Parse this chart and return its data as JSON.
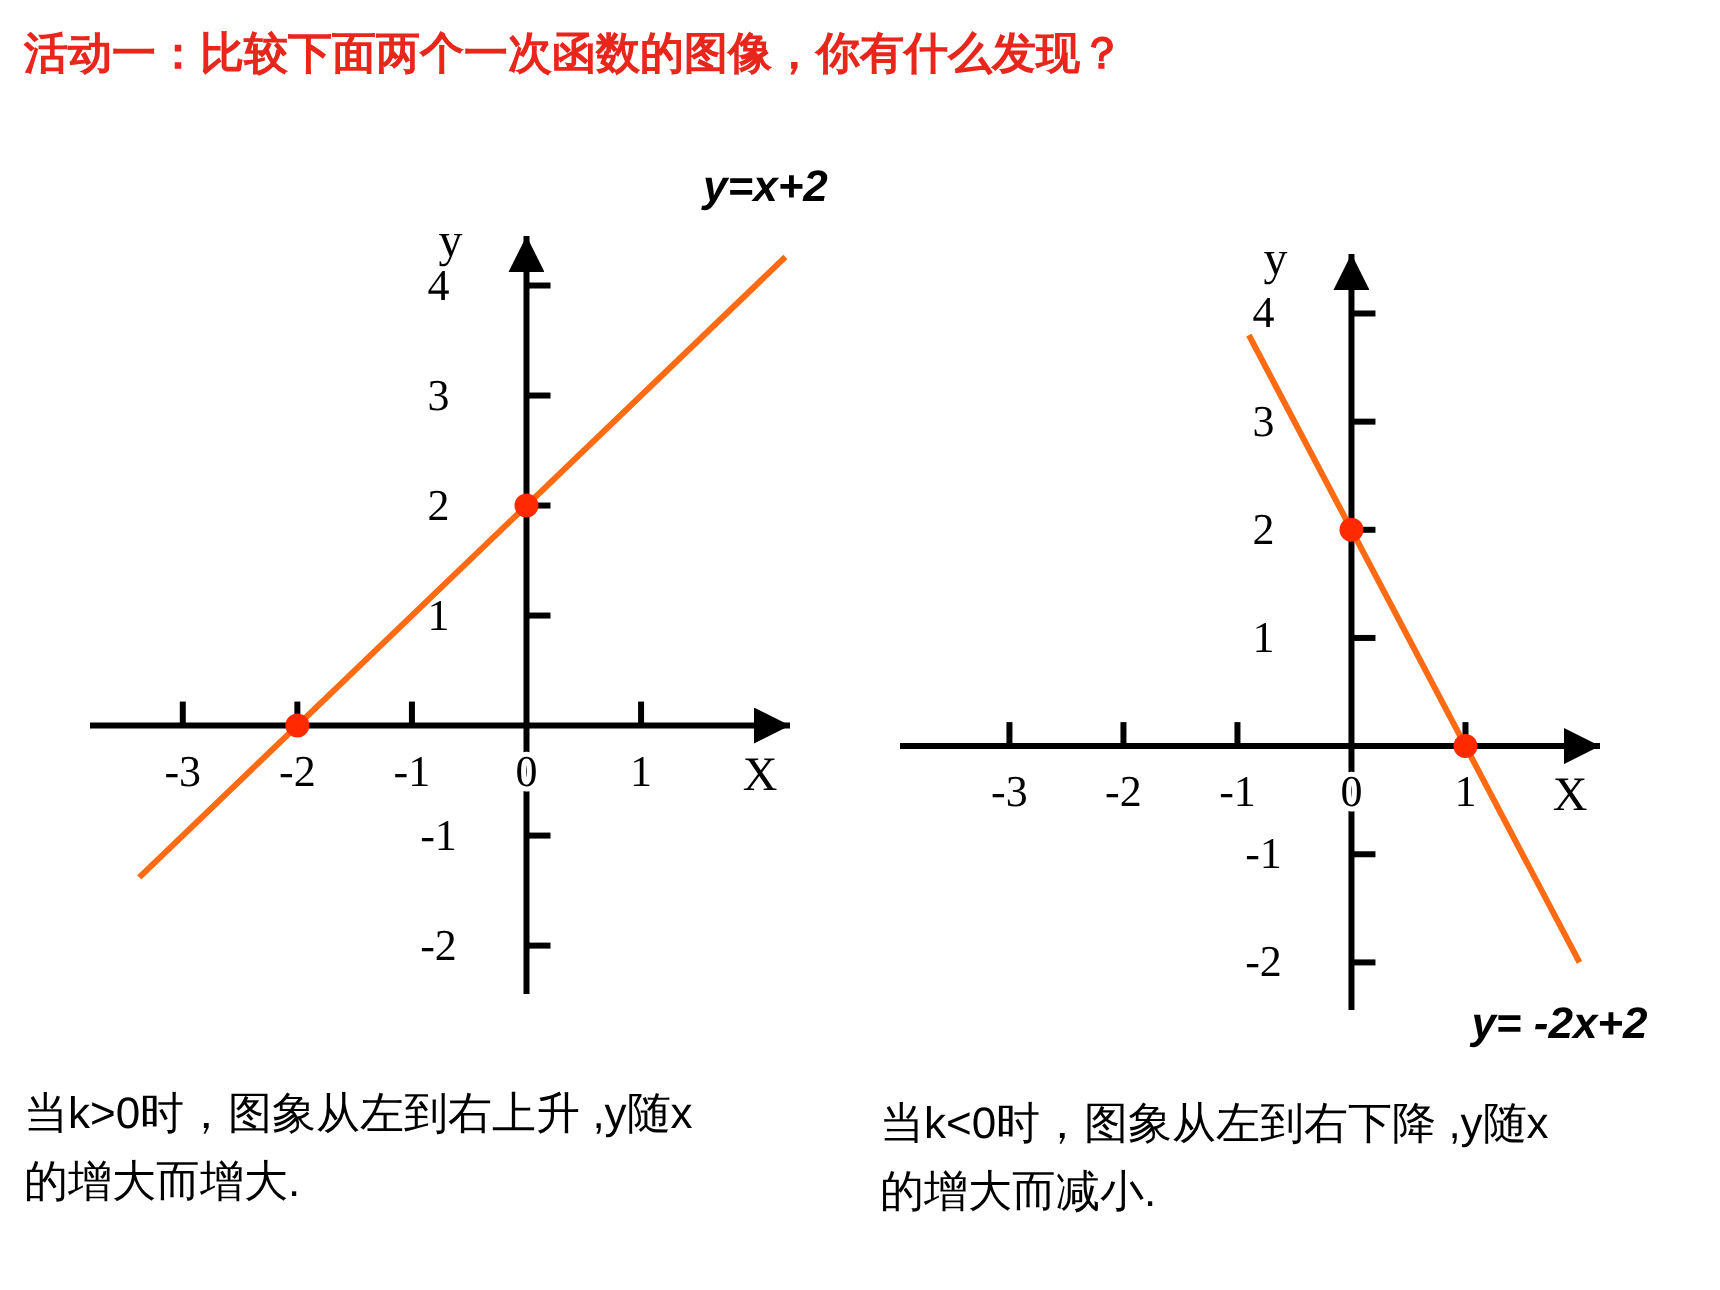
{
  "chart_data": [
    {
      "type": "line",
      "title": "活动一：比较下面两个一次函数的图像，你有什么发现？",
      "xlabel": "X",
      "ylabel": "y",
      "xlim": [
        -3.81,
        2.3
      ],
      "ylim": [
        -2.44,
        4.45
      ],
      "xticks": [
        -3,
        -2,
        -1,
        0,
        1
      ],
      "yticks": [
        -2,
        -1,
        1,
        2,
        3,
        4
      ],
      "series": [
        {
          "name": "y=x+2",
          "color": "#ff6a13",
          "x": [
            -3.38,
            2.26
          ],
          "values": [
            -1.38,
            4.26
          ]
        },
        {
          "type": "scatter",
          "color": "#ff2a00",
          "x": [
            -2,
            0
          ],
          "values": [
            0,
            2
          ]
        }
      ],
      "annotations": [
        "当k>0时，图象从左到右上升 ,y随x的增大而增大."
      ]
    },
    {
      "type": "line",
      "xlabel": "X",
      "ylabel": "y",
      "xlim": [
        -3.96,
        2.18
      ],
      "ylim": [
        -2.44,
        4.55
      ],
      "xticks": [
        -3,
        -2,
        -1,
        0,
        1
      ],
      "yticks": [
        -2,
        -1,
        1,
        2,
        3,
        4
      ],
      "series": [
        {
          "name": "y= -2x+2",
          "color": "#ff6a13",
          "x": [
            -0.9,
            2
          ],
          "values": [
            3.8,
            -2
          ]
        },
        {
          "type": "scatter",
          "color": "#ff2a00",
          "x": [
            0,
            1
          ],
          "values": [
            2,
            0
          ]
        }
      ],
      "annotations": [
        "当k<0时，图象从左到右下降 ,y随x的增大而减小."
      ]
    }
  ]
}
